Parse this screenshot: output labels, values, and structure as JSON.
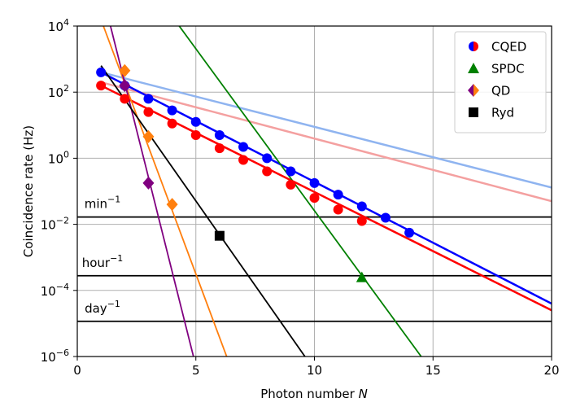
{
  "chart_data": {
    "type": "line",
    "xlabel": "Photon number",
    "xlabel_var": "N",
    "ylabel": "Coincidence rate (Hz)",
    "xlim": [
      0,
      20
    ],
    "ylim": [
      1e-06,
      10000.0
    ],
    "y_scale": "log",
    "grid": true,
    "legend_position": "top-right",
    "x_ticks": [
      0,
      5,
      10,
      15,
      20
    ],
    "y_ticks": [
      {
        "value": 10000.0,
        "base": "10",
        "exp": "4"
      },
      {
        "value": 100.0,
        "base": "10",
        "exp": "2"
      },
      {
        "value": 1.0,
        "base": "10",
        "exp": "0"
      },
      {
        "value": 0.01,
        "base": "10",
        "exp": "−2"
      },
      {
        "value": 0.0001,
        "base": "10",
        "exp": "−4"
      },
      {
        "value": 1e-06,
        "base": "10",
        "exp": "−6"
      }
    ],
    "rate_lines": [
      {
        "label": "min",
        "exp": "−1",
        "value": 0.01667
      },
      {
        "label": "hour",
        "exp": "−1",
        "value": 0.000278
      },
      {
        "label": "day",
        "exp": "−1",
        "value": 1.16e-05
      }
    ],
    "legend": [
      {
        "name": "CQED",
        "marker": "half-circle",
        "colors": [
          "#0000ff",
          "#ff0000"
        ]
      },
      {
        "name": "SPDC",
        "marker": "triangle",
        "colors": [
          "#008000"
        ]
      },
      {
        "name": "QD",
        "marker": "half-diamond",
        "colors": [
          "#800080",
          "#ff7f0e"
        ]
      },
      {
        "name": "Ryd",
        "marker": "square",
        "colors": [
          "#000000"
        ]
      }
    ],
    "lines": [
      {
        "color": "#8fb4f0",
        "width": 2.5,
        "x": [
          1,
          20
        ],
        "y": [
          398,
          0.13
        ]
      },
      {
        "color": "#f4a0a0",
        "width": 2.5,
        "x": [
          1,
          20
        ],
        "y": [
          200,
          0.05
        ]
      },
      {
        "color": "#0000ff",
        "width": 2.5,
        "x": [
          1,
          20
        ],
        "y": [
          398,
          3.98e-05
        ]
      },
      {
        "color": "#ff0000",
        "width": 2.5,
        "x": [
          1,
          20
        ],
        "y": [
          158,
          2.51e-05
        ]
      },
      {
        "color": "#008000",
        "width": 1.8,
        "x": [
          4.3,
          14.5
        ],
        "y": [
          10000,
          1e-06
        ]
      },
      {
        "color": "#ff7f0e",
        "width": 1.8,
        "x": [
          1.1,
          6.3
        ],
        "y": [
          10000,
          1e-06
        ]
      },
      {
        "color": "#800080",
        "width": 1.8,
        "x": [
          1.4,
          4.9
        ],
        "y": [
          10000,
          1e-06
        ]
      },
      {
        "color": "#000000",
        "width": 1.8,
        "x": [
          1,
          9.6
        ],
        "y": [
          631,
          1e-06
        ]
      }
    ],
    "series": [
      {
        "color": "#0000ff",
        "marker": "circle",
        "x": [
          1,
          2,
          3,
          4,
          5,
          6,
          7,
          8,
          9,
          10,
          11,
          12,
          13,
          14
        ],
        "y": [
          398,
          158,
          63,
          28,
          12.6,
          5.0,
          2.2,
          1.0,
          0.4,
          0.178,
          0.079,
          0.035,
          0.0158,
          0.0056
        ]
      },
      {
        "color": "#ff0000",
        "marker": "circle",
        "x": [
          1,
          2,
          3,
          4,
          5,
          6,
          7,
          8,
          9,
          10,
          11,
          12
        ],
        "y": [
          158,
          63,
          25,
          11.2,
          5.0,
          2.0,
          0.89,
          0.4,
          0.158,
          0.063,
          0.028,
          0.0126
        ]
      },
      {
        "color": "#008000",
        "marker": "triangle",
        "x": [
          12
        ],
        "y": [
          0.00025
        ]
      },
      {
        "color": "#ff7f0e",
        "marker": "diamond",
        "x": [
          2,
          3,
          4
        ],
        "y": [
          447,
          4.5,
          0.04
        ]
      },
      {
        "color": "#800080",
        "marker": "diamond",
        "x": [
          2,
          3
        ],
        "y": [
          158,
          0.178
        ]
      },
      {
        "color": "#000000",
        "marker": "square",
        "x": [
          6
        ],
        "y": [
          0.0045
        ]
      }
    ]
  }
}
